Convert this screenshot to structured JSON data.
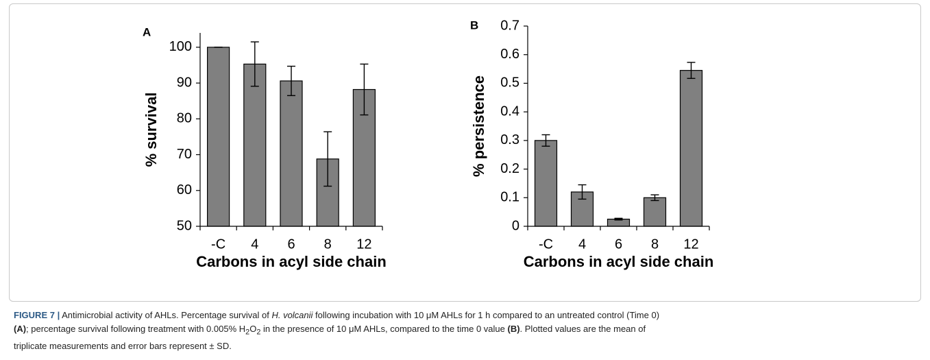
{
  "chart_data": [
    {
      "type": "bar",
      "panel_label": "A",
      "categories": [
        "-C",
        "4",
        "6",
        "8",
        "12"
      ],
      "values": [
        100,
        95.3,
        90.6,
        68.8,
        88.2
      ],
      "errors": [
        0,
        6.2,
        4.1,
        7.6,
        7.1
      ],
      "color": "#808080",
      "ylim": [
        50,
        104
      ],
      "yticks": [
        50,
        60,
        70,
        80,
        90,
        100
      ],
      "ylabel": "% survival",
      "xlabel": "Carbons in acyl side chain",
      "grid": false
    },
    {
      "type": "bar",
      "panel_label": "B",
      "categories": [
        "-C",
        "4",
        "6",
        "8",
        "12"
      ],
      "values": [
        0.3,
        0.12,
        0.025,
        0.1,
        0.545
      ],
      "errors": [
        0.02,
        0.025,
        0.003,
        0.01,
        0.028
      ],
      "color": "#808080",
      "ylim": [
        0,
        0.7
      ],
      "yticks": [
        0,
        0.1,
        0.2,
        0.3,
        0.4,
        0.5,
        0.6,
        0.7
      ],
      "ylabel": "% persistence",
      "xlabel": "Carbons in acyl side chain",
      "grid": false
    }
  ],
  "caption": [
    "FIGURE 7 |",
    " Antimicrobial activity of AHLs. Percentage survival of ",
    "H. volcanii",
    " following incubation with 10 μM AHLs for 1 h compared to an untreated control (Time 0)",
    "(A)",
    "; percentage survival following treatment with 0.005% H",
    "2",
    "O",
    "2",
    " in the presence of 10 μM AHLs, compared to the time 0 value ",
    "(B)",
    ". Plotted values are the mean of",
    "triplicate measurements and error bars represent ± SD."
  ]
}
